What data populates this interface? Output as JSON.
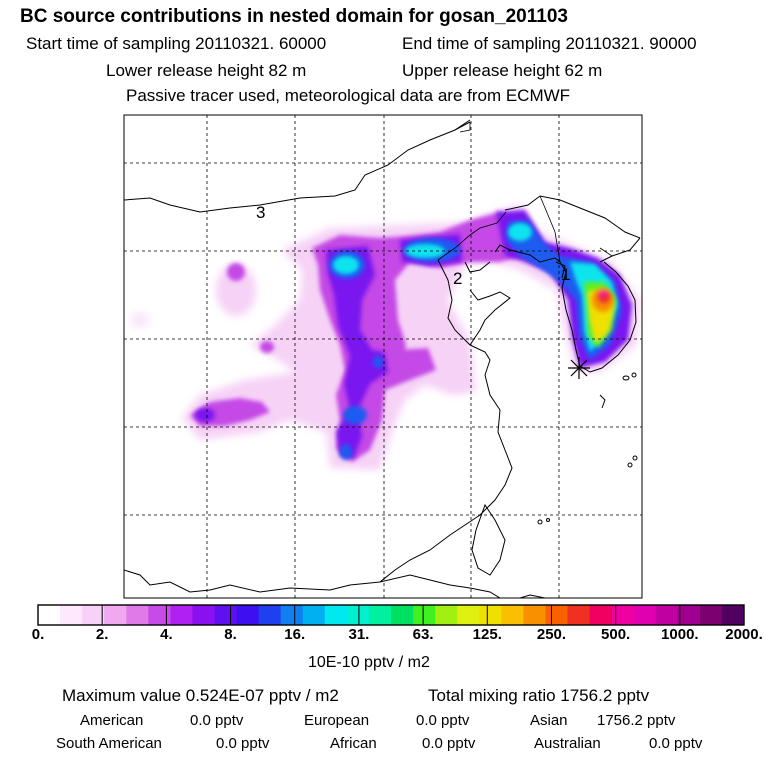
{
  "header": {
    "title": "BC  source contributions in nested domain for gosan_201103",
    "start_time": "Start time of sampling 20110321. 60000",
    "end_time": "End time of sampling 20110321. 90000",
    "lower_release": "Lower release height   82 m",
    "upper_release": "Upper release height   62 m",
    "tracer_note": "Passive tracer used, meteorological data are from ECMWF"
  },
  "map": {
    "region_labels": [
      "1",
      "2",
      "3"
    ],
    "receptor_marker": "gosan-star-marker"
  },
  "colorbar": {
    "tick_labels": [
      "0.",
      "2.",
      "4.",
      "8.",
      "16.",
      "31.",
      "63.",
      "125.",
      "250.",
      "500.",
      "1000.",
      "2000."
    ],
    "colors": [
      "#ffffff",
      "#fde8fd",
      "#f8d0f8",
      "#f0a8f0",
      "#e07ae8",
      "#c84ae8",
      "#b020f0",
      "#8a10f0",
      "#6010f0",
      "#3c10f0",
      "#2040f0",
      "#1080f0",
      "#00b0f0",
      "#00e8f0",
      "#00f0d0",
      "#00f0a0",
      "#00e060",
      "#40f020",
      "#a0f010",
      "#e0f010",
      "#f0e000",
      "#f8c000",
      "#f89000",
      "#f86000",
      "#f03020",
      "#f00060",
      "#f000a0",
      "#e000b0",
      "#c000a0",
      "#a00090",
      "#7c0070",
      "#500060"
    ],
    "units": "10E-10 pptv / m2"
  },
  "summary": {
    "max_value": "Maximum value  0.524E-07 pptv / m2",
    "total_mixing": "Total mixing ratio     1756.2 pptv",
    "american_label": "American",
    "american_value": "0.0 pptv",
    "european_label": "European",
    "european_value": "0.0 pptv",
    "asian_label": "Asian",
    "asian_value": "1756.2 pptv",
    "south_american_label": "South American",
    "south_american_value": "0.0 pptv",
    "african_label": "African",
    "african_value": "0.0 pptv",
    "australian_label": "Australian",
    "australian_value": "0.0 pptv"
  }
}
